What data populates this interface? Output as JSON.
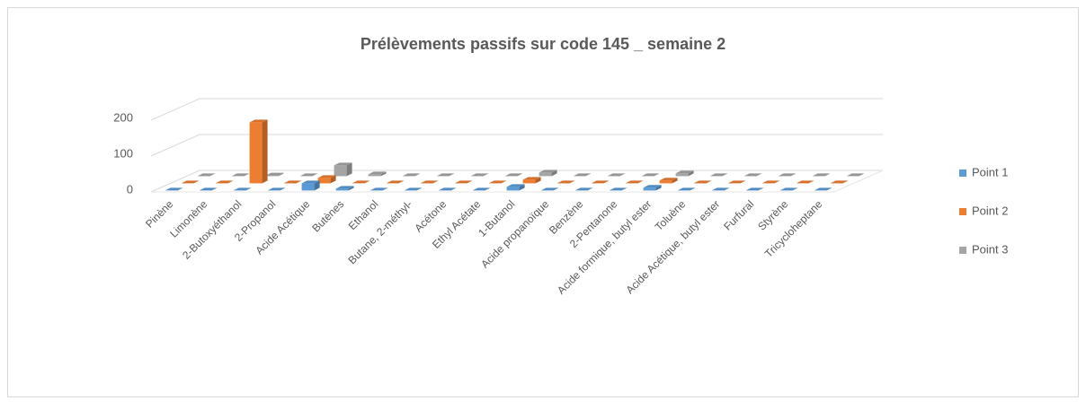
{
  "chart_data": {
    "type": "bar3d",
    "title": "Prélèvements passifs sur code 145 _ semaine 2",
    "categories": [
      "Pinène",
      "Limonène",
      "2-Butoxyéthanol",
      "2-Propanol",
      "Acide Acétique",
      "Butènes",
      "Ethanol",
      "Butane, 2-méthyl-",
      "Acétone",
      "Ethyl Acétate",
      "1-Butanol",
      "Acide propanoïque",
      "Benzène",
      "2-Pentanone",
      "Acide formique, butyl ester",
      "Toluène",
      "Acide Acétique, butyl ester",
      "Furfural",
      "Styrène",
      "Tricycloheptane"
    ],
    "series": [
      {
        "name": "Point 1",
        "color": "#5b9bd5",
        "values": [
          0,
          0,
          0,
          0,
          20,
          5,
          0,
          0,
          0,
          0,
          10,
          0,
          0,
          0,
          8,
          0,
          0,
          0,
          0,
          0
        ]
      },
      {
        "name": "Point 2",
        "color": "#ed7d31",
        "values": [
          0,
          0,
          170,
          0,
          15,
          0,
          0,
          0,
          0,
          0,
          10,
          0,
          0,
          0,
          8,
          0,
          0,
          0,
          0,
          0
        ]
      },
      {
        "name": "Point 3",
        "color": "#a5a5a5",
        "values": [
          0,
          0,
          2,
          0,
          30,
          5,
          0,
          0,
          0,
          0,
          10,
          0,
          0,
          0,
          8,
          0,
          0,
          0,
          0,
          0
        ]
      }
    ],
    "ylim": [
      0,
      200
    ],
    "yticks": [
      0,
      100,
      200
    ],
    "grid": true,
    "legend": "right"
  }
}
